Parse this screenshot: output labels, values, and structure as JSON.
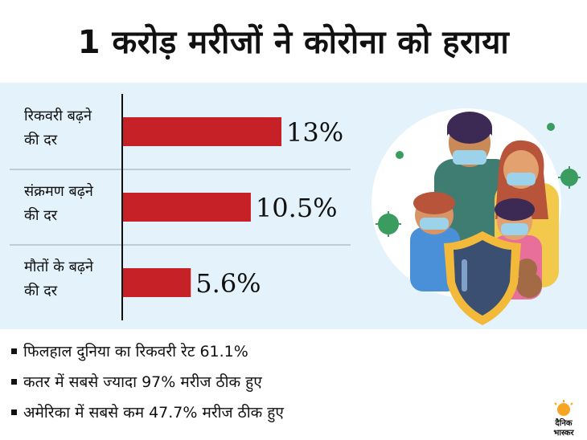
{
  "headline": "1 करोड़ मरीजों ने कोरोना को हराया",
  "colors": {
    "bar": "#c62127",
    "panel": "#e3f2fb",
    "divider": "#9aa5ad",
    "text": "#111111"
  },
  "chart_data": {
    "type": "bar",
    "orientation": "horizontal",
    "categories": [
      [
        "रिकवरी बढ़ने",
        "की दर"
      ],
      [
        "संक्रमण बढ़ने",
        "की दर"
      ],
      [
        "मौतों के बढ़ने",
        "की दर"
      ]
    ],
    "values": [
      13,
      10.5,
      5.6
    ],
    "data_labels": [
      "13%",
      "10.5%",
      "5.6%"
    ],
    "xlim": [
      0,
      13
    ],
    "grid": false,
    "legend": "none"
  },
  "notes": [
    "फिलहाल दुनिया का रिकवरी रेट 61.1%",
    "कतर में सबसे ज्यादा 97% मरीज ठीक हुए",
    "अमेरिका में सबसे कम 47.7% मरीज ठीक हुए"
  ],
  "logo": {
    "line1": "दैनिक",
    "line2": "भास्कर",
    "icon": "sun-logo-icon"
  },
  "illustration": {
    "icon": "family-with-masks-and-shield-icon"
  }
}
